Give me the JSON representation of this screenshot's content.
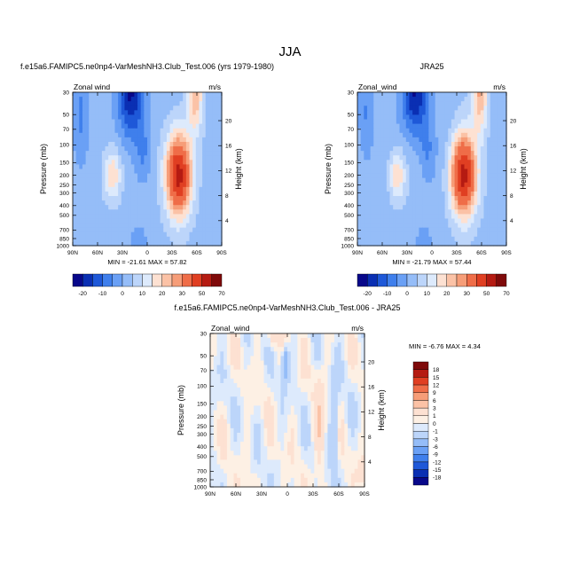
{
  "figure": {
    "title": "JJA"
  },
  "colors": {
    "main_levels": [
      "#08088a",
      "#0a2fb3",
      "#1e58d8",
      "#3f7fec",
      "#6aa0f5",
      "#95bdf8",
      "#bcd5fa",
      "#ddeafc",
      "#fde1d2",
      "#fbc2a6",
      "#f69d78",
      "#ef6d48",
      "#e03f22",
      "#b51b12",
      "#7f0a0a"
    ],
    "diff_levels": [
      "#08088a",
      "#0a2fb3",
      "#1e58d8",
      "#3f7fec",
      "#6aa0f5",
      "#95bdf8",
      "#bcd5fa",
      "#ddeafc",
      "#fdf0e4",
      "#fde1d2",
      "#fbc2a6",
      "#f69d78",
      "#ef6d48",
      "#e03f22",
      "#b51b12",
      "#7f0a0a"
    ]
  },
  "chart_data": [
    {
      "type": "heatmap",
      "title": "f.e15a6.FAMIPC5.ne0np4-VarMeshNH3.Club_Test.006 (yrs 1979-1980)",
      "left_label": "Zonal wind",
      "units": "m/s",
      "xlabel": "",
      "ylabel": "Pressure (mb)",
      "y2label": "Height (km)",
      "x_ticks": [
        "90N",
        "60N",
        "30N",
        "0",
        "30S",
        "60S",
        "90S"
      ],
      "y_ticks": [
        "30",
        "50",
        "70",
        "100",
        "150",
        "200",
        "250",
        "300",
        "400",
        "500",
        "700",
        "850",
        "1000"
      ],
      "y2_ticks": [
        "20",
        "16",
        "12",
        "8",
        "4"
      ],
      "min_max_text": "MIN = -21.61   MAX =  57.82",
      "min": -21.61,
      "max": 57.82,
      "colorbar_labels": [
        "-20",
        "-10",
        "0",
        "10",
        "20",
        "30",
        "50",
        "70"
      ]
    },
    {
      "type": "heatmap",
      "title": "JRA25",
      "left_label": "Zonal_wind",
      "units": "m/s",
      "xlabel": "",
      "ylabel": "Pressure (mb)",
      "y2label": "Height (km)",
      "x_ticks": [
        "90N",
        "60N",
        "30N",
        "0",
        "30S",
        "60S",
        "90S"
      ],
      "y_ticks": [
        "30",
        "50",
        "70",
        "100",
        "150",
        "200",
        "250",
        "300",
        "400",
        "500",
        "700",
        "850",
        "1000"
      ],
      "y2_ticks": [
        "20",
        "16",
        "12",
        "8",
        "4"
      ],
      "min_max_text": "MIN = -21.79   MAX =  57.44",
      "min": -21.79,
      "max": 57.44,
      "colorbar_labels": [
        "-20",
        "-10",
        "0",
        "10",
        "20",
        "30",
        "50",
        "70"
      ]
    },
    {
      "type": "heatmap",
      "title": "f.e15a6.FAMIPC5.ne0np4-VarMeshNH3.Club_Test.006 - JRA25",
      "left_label": "Zonal_wind",
      "units": "m/s",
      "xlabel": "",
      "ylabel": "Pressure (mb)",
      "y2label": "Height (km)",
      "x_ticks": [
        "90N",
        "60N",
        "30N",
        "0",
        "30S",
        "60S",
        "90S"
      ],
      "y_ticks": [
        "30",
        "50",
        "70",
        "100",
        "150",
        "200",
        "250",
        "300",
        "400",
        "500",
        "700",
        "850",
        "1000"
      ],
      "y2_ticks": [
        "20",
        "16",
        "12",
        "8",
        "4"
      ],
      "min_max_text": "MIN =  -6.76   MAX =   4.34",
      "min": -6.76,
      "max": 4.34,
      "colorbar_labels": [
        "18",
        "15",
        "12",
        "9",
        "6",
        "3",
        "1",
        "0",
        "-1",
        "-3",
        "-6",
        "-9",
        "-12",
        "-15",
        "-18"
      ]
    }
  ]
}
